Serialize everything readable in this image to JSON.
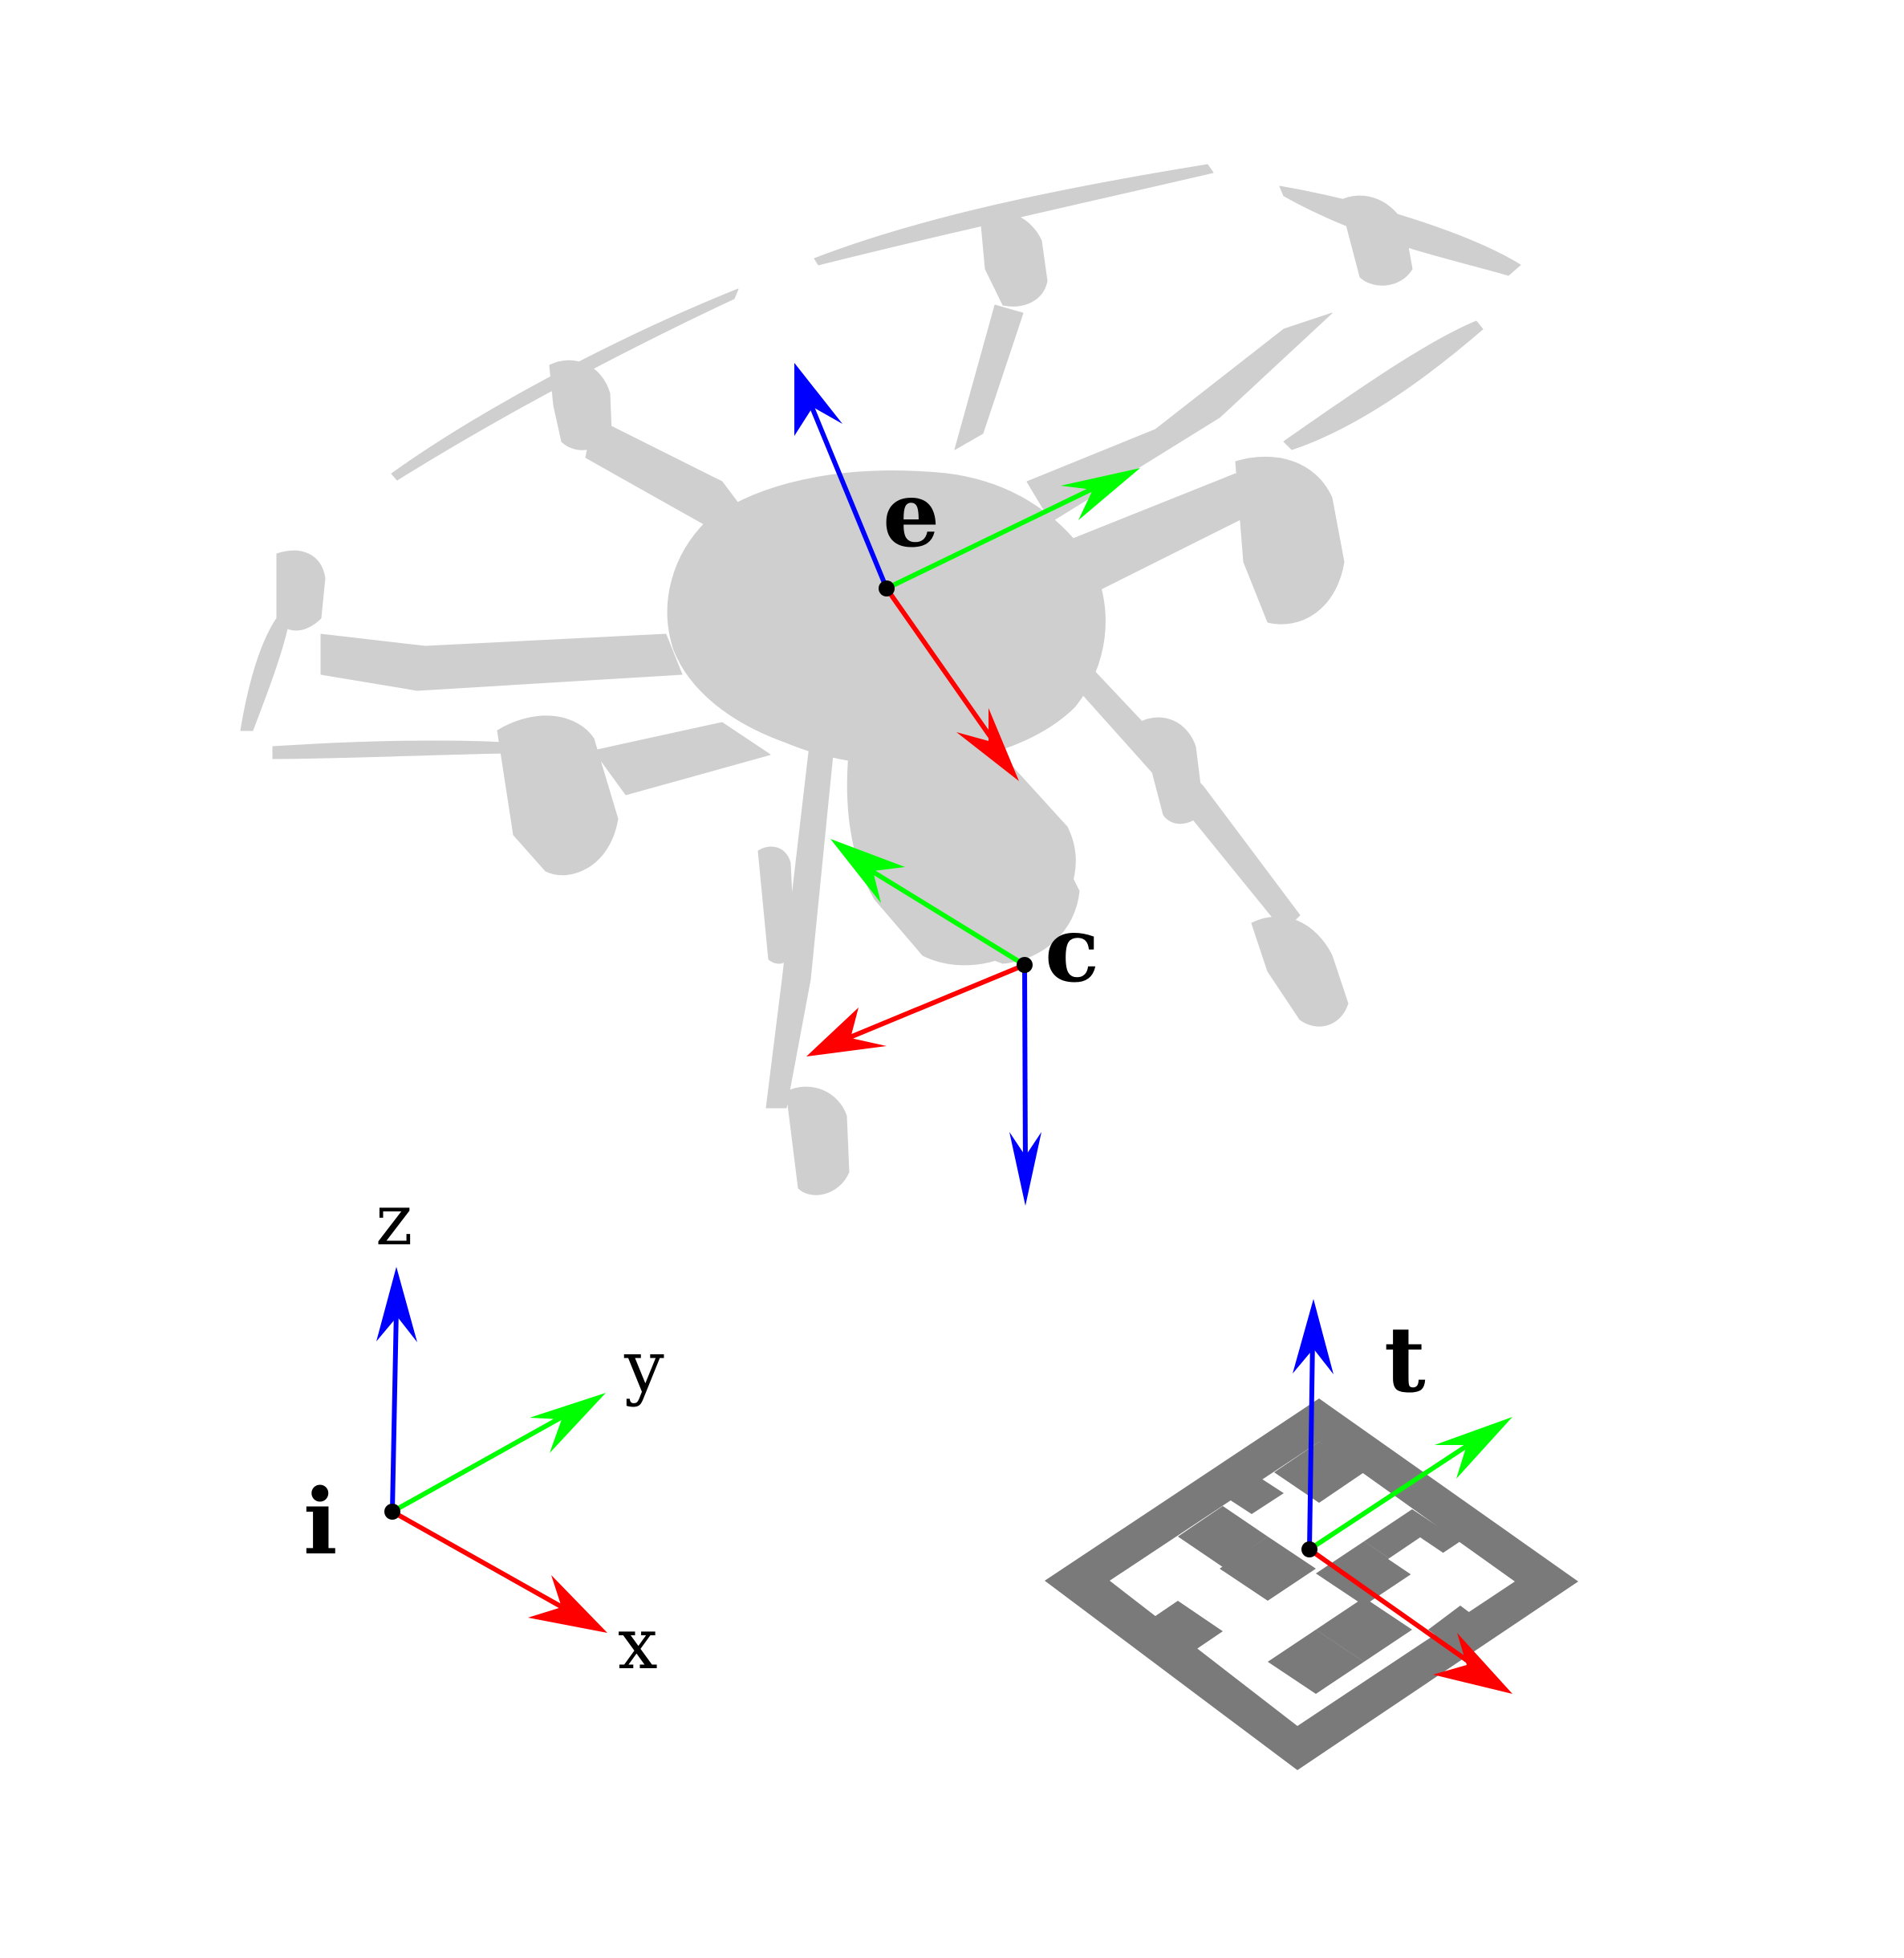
{
  "frames": {
    "drone_body": {
      "label": "e"
    },
    "camera": {
      "label": "c"
    },
    "inertial": {
      "label": "i"
    },
    "target": {
      "label": "t"
    }
  },
  "axis_labels": {
    "x": "x",
    "y": "y",
    "z": "z"
  },
  "colors": {
    "x_axis": "#ff0000",
    "y_axis": "#00ff00",
    "z_axis": "#0000ff",
    "drone_silhouette": "#cfcfcf",
    "marker": "#7a7a7a",
    "origin_dot": "#000000"
  },
  "icons": {
    "drone": "hexacopter-silhouette-icon",
    "marker": "fiducial-marker-icon"
  }
}
